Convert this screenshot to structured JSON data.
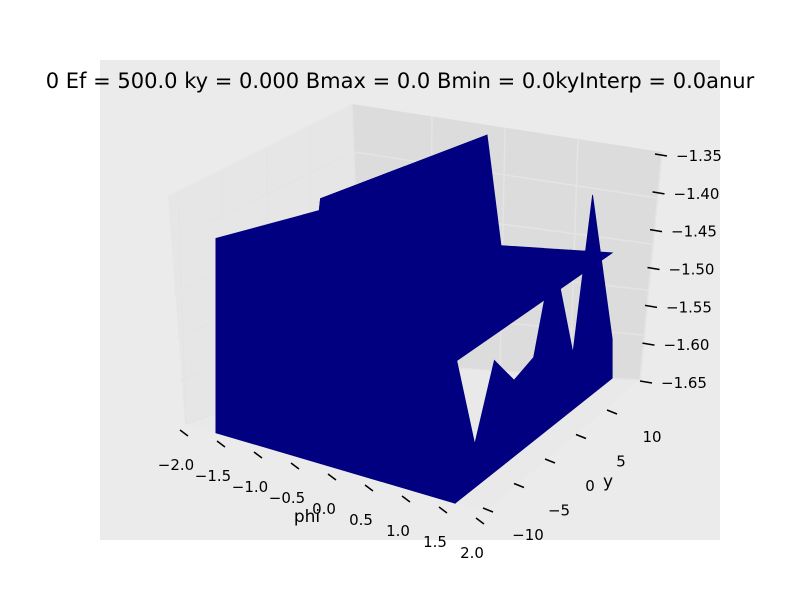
{
  "chart_data": {
    "type": "surface3d",
    "title": "0 Ef = 500.0 ky = 0.000 Bmax = 0.0 Bmin = 0.0kyInterp = 0.0anur",
    "xlabel": "phi",
    "ylabel": "y",
    "zlabel": "",
    "xlim": [
      -2.0,
      2.0
    ],
    "ylim": [
      -10,
      10
    ],
    "zlim": [
      -1.65,
      -1.35
    ],
    "x_ticks": [
      "−2.0",
      "−1.5",
      "−1.0",
      "−0.5",
      "0.0",
      "0.5",
      "1.0",
      "1.5",
      "2.0"
    ],
    "y_ticks": [
      "−10",
      "−5",
      "0",
      "5",
      "10"
    ],
    "z_ticks": [
      "−1.65",
      "−1.60",
      "−1.55",
      "−1.50",
      "−1.45",
      "−1.40",
      "−1.35"
    ],
    "phi": [
      -1.6,
      -1.4,
      -1.2,
      -1.0,
      -0.8,
      -0.6,
      -0.4,
      -0.2,
      0.0,
      0.2,
      0.4,
      0.6,
      0.8,
      1.0,
      1.2,
      1.4,
      1.6
    ],
    "z_values": [
      -1.43,
      -1.61,
      -1.44,
      -1.5,
      -1.48,
      -1.39,
      -1.51,
      -1.35,
      -1.49,
      -1.49,
      -1.49,
      -1.49,
      -1.49,
      -1.49,
      -1.49,
      -1.49,
      -1.49
    ],
    "z_profile_at_y_max": [
      -1.48,
      -1.6,
      -1.52,
      -1.56,
      -1.55,
      -1.44,
      -1.58,
      -1.4,
      -1.6
    ],
    "surface_color": "#000080",
    "pane_color": "#ebebeb",
    "grid": true
  }
}
